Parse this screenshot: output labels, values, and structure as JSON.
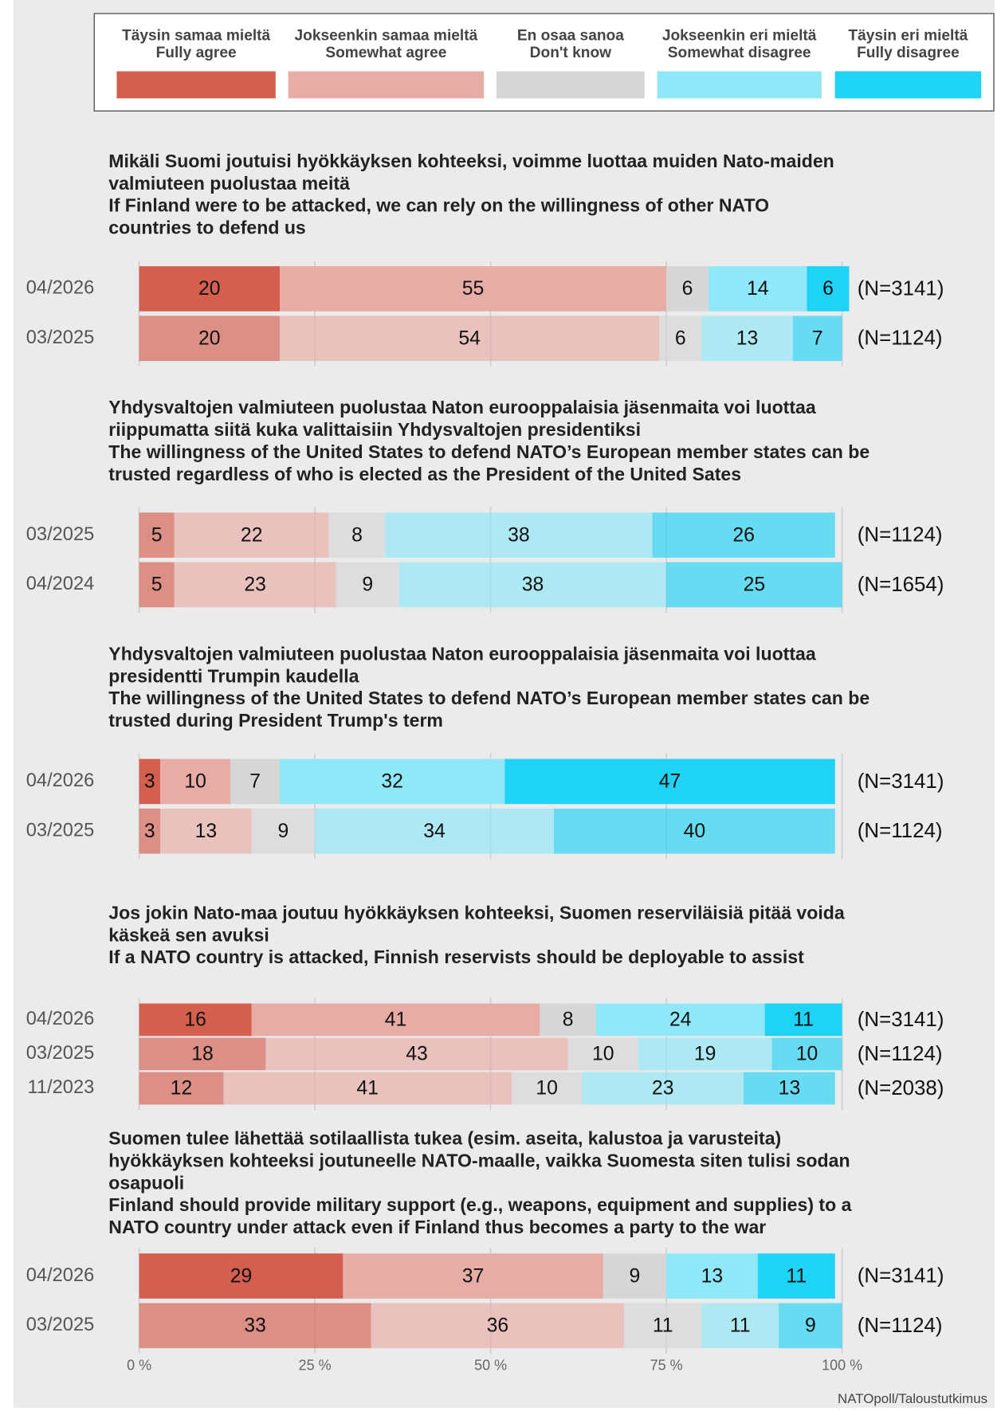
{
  "chart_data": {
    "type": "stacked-bar-horizontal",
    "series": [
      {
        "name": [
          "Täysin samaa mieltä",
          "Fully agree"
        ],
        "color": "#d45f4f"
      },
      {
        "name": [
          "Jokseenkin samaa mieltä",
          "Somewhat agree"
        ],
        "color": "#e8aca6"
      },
      {
        "name": [
          "En osaa sanoa",
          "Don't know"
        ],
        "color": "#d6d6d6"
      },
      {
        "name": [
          "Jokseenkin eri mieltä",
          "Somewhat disagree"
        ],
        "color": "#8ee8f8"
      },
      {
        "name": [
          "Täysin eri mieltä",
          "Fully disagree"
        ],
        "color": "#1fd3f5"
      }
    ],
    "highlight_category": "04/2026",
    "xlim": [
      0,
      100
    ],
    "xticks": [
      {
        "value": 0,
        "label": "0 %"
      },
      {
        "value": 25,
        "label": "25 %"
      },
      {
        "value": 50,
        "label": "50 %"
      },
      {
        "value": 75,
        "label": "75 %"
      },
      {
        "value": 100,
        "label": "100 %"
      }
    ],
    "grid": true,
    "source": "NATOpoll/Taloustutkimus",
    "panels": [
      {
        "title": [
          "Mikäli Suomi joutuisi hyökkäyksen kohteeksi, voimme luottaa muiden Nato-maiden",
          "valmiuteen puolustaa meitä",
          "If Finland were to be attacked, we can rely on the willingness of other NATO",
          "countries to defend us"
        ],
        "categories": [
          "04/2026",
          "03/2025"
        ],
        "n_labels": [
          "(N=3141)",
          "(N=1124)"
        ],
        "values": [
          [
            20,
            55,
            6,
            14,
            6
          ],
          [
            20,
            54,
            6,
            13,
            7
          ]
        ]
      },
      {
        "title": [
          "Yhdysvaltojen valmiuteen puolustaa Naton eurooppalaisia jäsenmaita voi luottaa",
          "riippumatta siitä kuka valittaisiin Yhdysvaltojen presidentiksi",
          "The willingness of the United States to defend NATO’s European member states can be",
          "trusted regardless of who is elected as the President of the United Sates"
        ],
        "categories": [
          "03/2025",
          "04/2024"
        ],
        "n_labels": [
          "(N=1124)",
          "(N=1654)"
        ],
        "values": [
          [
            5,
            22,
            8,
            38,
            26
          ],
          [
            5,
            23,
            9,
            38,
            25
          ]
        ]
      },
      {
        "title": [
          "Yhdysvaltojen valmiuteen puolustaa Naton eurooppalaisia jäsenmaita voi luottaa",
          "presidentti Trumpin kaudella",
          "The willingness of the United States to defend NATO’s European member states can be",
          "trusted during President Trump's term"
        ],
        "categories": [
          "04/2026",
          "03/2025"
        ],
        "n_labels": [
          "(N=3141)",
          "(N=1124)"
        ],
        "values": [
          [
            3,
            10,
            7,
            32,
            47
          ],
          [
            3,
            13,
            9,
            34,
            40
          ]
        ]
      },
      {
        "title": [
          "Jos jokin Nato-maa joutuu hyökkäyksen kohteeksi, Suomen reserviläisiä pitää voida",
          "käskeä sen avuksi",
          "If a NATO country is attacked, Finnish reservists should be deployable to assist"
        ],
        "categories": [
          "04/2026",
          "03/2025",
          "11/2023"
        ],
        "n_labels": [
          "(N=3141)",
          "(N=1124)",
          "(N=2038)"
        ],
        "values": [
          [
            16,
            41,
            8,
            24,
            11
          ],
          [
            18,
            43,
            10,
            19,
            10
          ],
          [
            12,
            41,
            10,
            23,
            13
          ]
        ]
      },
      {
        "title": [
          "Suomen tulee lähettää sotilaallista tukea (esim. aseita, kalustoa ja varusteita)",
          "hyökkäyksen kohteeksi joutuneelle NATO-maalle, vaikka Suomesta siten tulisi sodan",
          "osapuoli",
          "Finland should provide military support (e.g., weapons, equipment and supplies) to a",
          "NATO country under attack even if Finland thus becomes a party to the war"
        ],
        "categories": [
          "04/2026",
          "03/2025"
        ],
        "n_labels": [
          "(N=3141)",
          "(N=1124)"
        ],
        "values": [
          [
            29,
            37,
            9,
            13,
            11
          ],
          [
            33,
            36,
            11,
            11,
            9
          ]
        ]
      }
    ]
  }
}
